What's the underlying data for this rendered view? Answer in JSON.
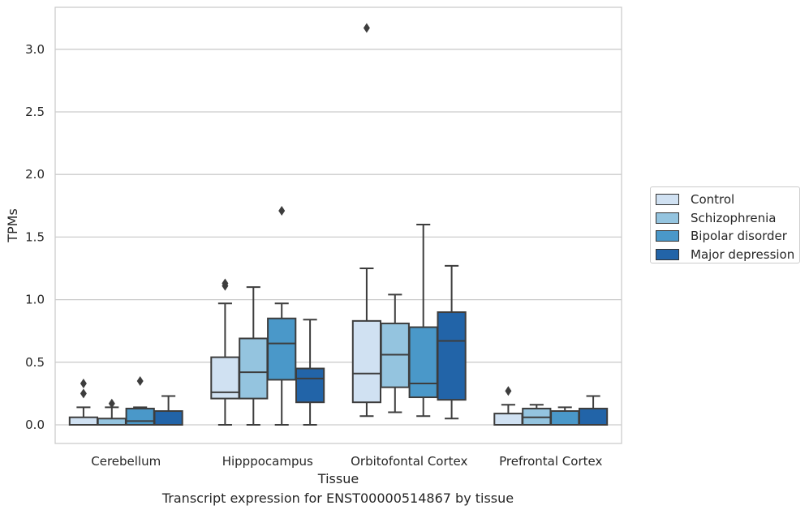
{
  "chart_data": {
    "type": "box",
    "xlabel": "Tissue",
    "ylabel": "TPMs",
    "ylim": [
      -0.15,
      3.35
    ],
    "yticks": [
      "0.0",
      "0.5",
      "1.0",
      "1.5",
      "2.0",
      "2.5",
      "3.0"
    ],
    "categories": [
      "Cerebellum",
      "Hipppocampus",
      "Orbitofontal Cortex",
      "Prefrontal Cortex"
    ],
    "grid": "horizontal",
    "legend_position": "right",
    "series": [
      {
        "name": "Control",
        "color": "#d0e1f2",
        "boxes": [
          {
            "whislo": 0.0,
            "q1": 0.0,
            "med": 0.0,
            "q3": 0.06,
            "whishi": 0.14,
            "fliers": [
              0.25,
              0.33
            ]
          },
          {
            "whislo": 0.0,
            "q1": 0.21,
            "med": 0.26,
            "q3": 0.54,
            "whishi": 0.97,
            "fliers": [
              1.11,
              1.13
            ]
          },
          {
            "whislo": 0.07,
            "q1": 0.18,
            "med": 0.41,
            "q3": 0.83,
            "whishi": 1.25,
            "fliers": [
              3.17
            ]
          },
          {
            "whislo": 0.0,
            "q1": 0.0,
            "med": 0.0,
            "q3": 0.09,
            "whishi": 0.16,
            "fliers": [
              0.27
            ]
          }
        ]
      },
      {
        "name": "Schizophrenia",
        "color": "#94c4df",
        "boxes": [
          {
            "whislo": 0.0,
            "q1": 0.0,
            "med": 0.0,
            "q3": 0.05,
            "whishi": 0.14,
            "fliers": [
              0.17
            ]
          },
          {
            "whislo": 0.0,
            "q1": 0.21,
            "med": 0.42,
            "q3": 0.69,
            "whishi": 1.1,
            "fliers": []
          },
          {
            "whislo": 0.1,
            "q1": 0.3,
            "med": 0.56,
            "q3": 0.81,
            "whishi": 1.04,
            "fliers": []
          },
          {
            "whislo": 0.0,
            "q1": 0.0,
            "med": 0.06,
            "q3": 0.13,
            "whishi": 0.16,
            "fliers": []
          }
        ]
      },
      {
        "name": "Bipolar disorder",
        "color": "#4a98c9",
        "boxes": [
          {
            "whislo": 0.0,
            "q1": 0.0,
            "med": 0.03,
            "q3": 0.13,
            "whishi": 0.14,
            "fliers": [
              0.35
            ]
          },
          {
            "whislo": 0.0,
            "q1": 0.36,
            "med": 0.65,
            "q3": 0.85,
            "whishi": 0.97,
            "fliers": [
              1.71
            ]
          },
          {
            "whislo": 0.07,
            "q1": 0.22,
            "med": 0.33,
            "q3": 0.78,
            "whishi": 1.6,
            "fliers": []
          },
          {
            "whislo": 0.0,
            "q1": 0.0,
            "med": 0.0,
            "q3": 0.11,
            "whishi": 0.14,
            "fliers": []
          }
        ]
      },
      {
        "name": "Major depression",
        "color": "#2264a8",
        "boxes": [
          {
            "whislo": 0.0,
            "q1": 0.0,
            "med": 0.0,
            "q3": 0.11,
            "whishi": 0.23,
            "fliers": []
          },
          {
            "whislo": 0.0,
            "q1": 0.18,
            "med": 0.37,
            "q3": 0.45,
            "whishi": 0.84,
            "fliers": []
          },
          {
            "whislo": 0.05,
            "q1": 0.2,
            "med": 0.67,
            "q3": 0.9,
            "whishi": 1.27,
            "fliers": []
          },
          {
            "whislo": 0.0,
            "q1": 0.0,
            "med": 0.0,
            "q3": 0.13,
            "whishi": 0.23,
            "fliers": []
          }
        ]
      }
    ]
  },
  "caption": "Transcript expression for ENST00000514867 by tissue"
}
